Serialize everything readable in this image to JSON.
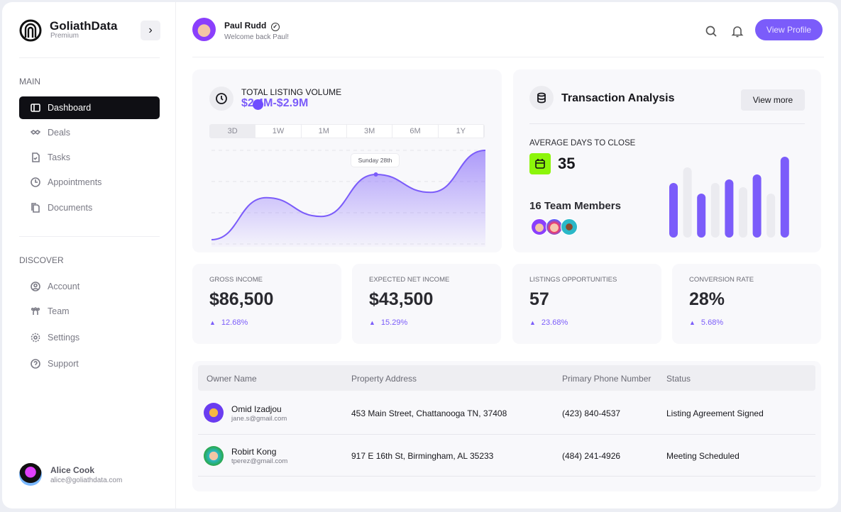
{
  "brand": {
    "name": "GoliathData",
    "tier": "Premium"
  },
  "sidebar": {
    "main_label": "MAIN",
    "main_items": [
      {
        "label": "Dashboard",
        "icon": "layout-icon",
        "active": true
      },
      {
        "label": "Deals",
        "icon": "handshake-icon"
      },
      {
        "label": "Tasks",
        "icon": "file-check-icon"
      },
      {
        "label": "Appointments",
        "icon": "clock-icon"
      },
      {
        "label": "Documents",
        "icon": "documents-icon"
      }
    ],
    "discover_label": "DISCOVER",
    "discover_items": [
      {
        "label": "Account",
        "icon": "user-circle-icon"
      },
      {
        "label": "Team",
        "icon": "team-icon"
      },
      {
        "label": "Settings",
        "icon": "gear-icon"
      },
      {
        "label": "Support",
        "icon": "help-icon"
      }
    ],
    "user": {
      "name": "Alice Cook",
      "email": "alice@goliathdata.com"
    }
  },
  "header": {
    "name": "Paul Rudd",
    "welcome": "Welcome back Paul!",
    "view_profile": "View Profile"
  },
  "volume": {
    "title": "TOTAL LISTING VOLUME",
    "range": "$2.4M-$2.9M",
    "tabs": [
      "3D",
      "1W",
      "1M",
      "3M",
      "6M",
      "1Y"
    ],
    "selected_tab": "3D",
    "tooltip": "Sunday 28th",
    "accent": "#7b5cfa"
  },
  "transaction": {
    "title": "Transaction Analysis",
    "view_more": "View more",
    "avg_label": "AVERAGE DAYS TO CLOSE",
    "avg_value": "35",
    "team": "16 Team Members",
    "calendar_color": "#8cf50a"
  },
  "chart_data": [
    {
      "type": "area",
      "series": [
        {
          "values": [
            0,
            47,
            26,
            73,
            53,
            100
          ]
        }
      ],
      "highlight_index": 3
    },
    {
      "type": "bar",
      "values": [
        77,
        99,
        62,
        77,
        82,
        71,
        89,
        62,
        114
      ],
      "colors": [
        "#7b5cfa",
        "#ebebf0",
        "#7b5cfa",
        "#ebebf0",
        "#7b5cfa",
        "#ebebf0",
        "#7b5cfa",
        "#ebebf0",
        "#7b5cfa"
      ]
    }
  ],
  "stats": [
    {
      "label": "GROSS INCOME",
      "value": "$86,500",
      "change": "12.68%"
    },
    {
      "label": "EXPECTED NET INCOME",
      "value": "$43,500",
      "change": "15.29%"
    },
    {
      "label": "LISTINGS OPPORTUNITIES",
      "value": "57",
      "change": "23.68%"
    },
    {
      "label": "CONVERSION RATE",
      "value": "28%",
      "change": "5.68%"
    }
  ],
  "table": {
    "headers": [
      "Owner Name",
      "Property Address",
      "Primary Phone Number",
      "Status"
    ],
    "rows": [
      {
        "name": "Omid Izadjou",
        "email": "jane.s@gmail.com",
        "address": "453 Main Street, Chattanooga TN, 37408",
        "phone": "(423) 840-4537",
        "status": "Listing Agreement Signed"
      },
      {
        "name": "Robirt Kong",
        "email": "tperez@gmail.com",
        "address": "917 E 16th St, Birmingham, AL 35233",
        "phone": "(484) 241-4926",
        "status": "Meeting Scheduled"
      }
    ]
  }
}
